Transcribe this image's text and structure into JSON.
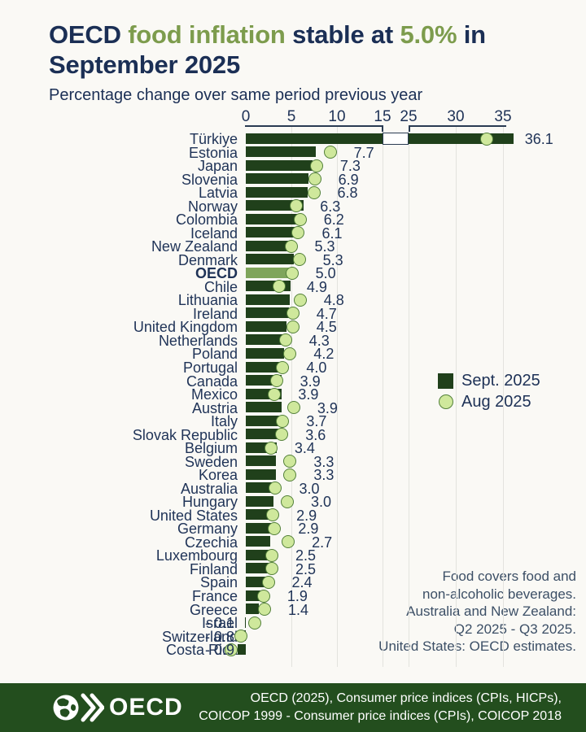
{
  "title": {
    "parts": [
      {
        "text": "OECD ",
        "accent": false
      },
      {
        "text": "food inflation",
        "accent": true
      },
      {
        "text": " stable at ",
        "accent": false
      },
      {
        "text": "5.0%",
        "accent": true
      },
      {
        "text": " in September 2025",
        "accent": false
      }
    ]
  },
  "subtitle": "Percentage change over same period previous year",
  "legend": {
    "sept_label": "Sept. 2025",
    "aug_label": "Aug 2025"
  },
  "footnote_lines": [
    "Food covers food and",
    "non-alcoholic beverages.",
    "Australia and New Zealand:",
    "Q2 2025 - Q3 2025.",
    "United States: OECD estimates."
  ],
  "footer": {
    "logo_text": "OECD",
    "source_lines": [
      "OECD (2025), Consumer price indices (CPIs, HICPs),",
      "COICOP 1999 - Consumer price indices (CPIs), COICOP 2018"
    ]
  },
  "chart_data": {
    "type": "bar",
    "orientation": "horizontal",
    "series": [
      {
        "name": "Sept. 2025",
        "style": "bar"
      },
      {
        "name": "Aug 2025",
        "style": "point"
      }
    ],
    "axis": {
      "left_ticks": [
        0,
        5,
        10,
        15
      ],
      "right_ticks": [
        25,
        30,
        35
      ],
      "break_between": [
        15,
        25
      ],
      "grid": true
    },
    "countries": [
      {
        "label": "Türkiye",
        "sept": 36.1,
        "aug": 33.3,
        "display": "36.1",
        "break_bar": true
      },
      {
        "label": "Estonia",
        "sept": 7.7,
        "aug": 9.3,
        "display": "7.7"
      },
      {
        "label": "Japan",
        "sept": 7.3,
        "aug": 7.8,
        "display": "7.3"
      },
      {
        "label": "Slovenia",
        "sept": 6.9,
        "aug": 7.6,
        "display": "6.9"
      },
      {
        "label": "Latvia",
        "sept": 6.8,
        "aug": 7.5,
        "display": "6.8"
      },
      {
        "label": "Norway",
        "sept": 6.3,
        "aug": 5.6,
        "display": "6.3"
      },
      {
        "label": "Colombia",
        "sept": 6.2,
        "aug": 6.0,
        "display": "6.2"
      },
      {
        "label": "Iceland",
        "sept": 6.1,
        "aug": 5.8,
        "display": "6.1"
      },
      {
        "label": "New Zealand",
        "sept": 5.3,
        "aug": 5.0,
        "display": "5.3"
      },
      {
        "label": "Denmark",
        "sept": 5.3,
        "aug": 5.9,
        "display": "5.3"
      },
      {
        "label": "OECD",
        "sept": 5.0,
        "aug": 5.1,
        "display": "5.0",
        "highlight": true
      },
      {
        "label": "Chile",
        "sept": 4.9,
        "aug": 3.7,
        "display": "4.9"
      },
      {
        "label": "Lithuania",
        "sept": 4.8,
        "aug": 6.0,
        "display": "4.8"
      },
      {
        "label": "Ireland",
        "sept": 4.7,
        "aug": 5.2,
        "display": "4.7"
      },
      {
        "label": "United Kingdom",
        "sept": 4.5,
        "aug": 5.2,
        "display": "4.5"
      },
      {
        "label": "Netherlands",
        "sept": 4.3,
        "aug": 4.4,
        "display": "4.3"
      },
      {
        "label": "Poland",
        "sept": 4.2,
        "aug": 4.9,
        "display": "4.2"
      },
      {
        "label": "Portugal",
        "sept": 4.0,
        "aug": 4.1,
        "display": "4.0"
      },
      {
        "label": "Canada",
        "sept": 3.9,
        "aug": 3.4,
        "display": "3.9"
      },
      {
        "label": "Mexico",
        "sept": 3.9,
        "aug": 3.2,
        "display": "3.9"
      },
      {
        "label": "Austria",
        "sept": 3.9,
        "aug": 5.3,
        "display": "3.9"
      },
      {
        "label": "Italy",
        "sept": 3.7,
        "aug": 4.1,
        "display": "3.7"
      },
      {
        "label": "Slovak Republic",
        "sept": 3.6,
        "aug": 4.0,
        "display": "3.6"
      },
      {
        "label": "Belgium",
        "sept": 3.4,
        "aug": 2.8,
        "display": "3.4"
      },
      {
        "label": "Sweden",
        "sept": 3.3,
        "aug": 4.9,
        "display": "3.3"
      },
      {
        "label": "Korea",
        "sept": 3.3,
        "aug": 4.9,
        "display": "3.3"
      },
      {
        "label": "Australia",
        "sept": 3.0,
        "aug": 3.3,
        "display": "3.0"
      },
      {
        "label": "Hungary",
        "sept": 3.0,
        "aug": 4.6,
        "display": "3.0"
      },
      {
        "label": "United States",
        "sept": 2.9,
        "aug": 3.0,
        "display": "2.9"
      },
      {
        "label": "Germany",
        "sept": 2.9,
        "aug": 3.2,
        "display": "2.9"
      },
      {
        "label": "Czechia",
        "sept": 2.7,
        "aug": 4.7,
        "display": "2.7"
      },
      {
        "label": "Luxembourg",
        "sept": 2.5,
        "aug": 2.9,
        "display": "2.5"
      },
      {
        "label": "Finland",
        "sept": 2.5,
        "aug": 2.9,
        "display": "2.5"
      },
      {
        "label": "Spain",
        "sept": 2.4,
        "aug": 2.5,
        "display": "2.4"
      },
      {
        "label": "France",
        "sept": 1.9,
        "aug": 2.0,
        "display": "1.9"
      },
      {
        "label": "Greece",
        "sept": 1.4,
        "aug": 2.1,
        "display": "1.4"
      },
      {
        "label": "Israel",
        "sept": -0.1,
        "aug": 1.0,
        "display": "- 0.1"
      },
      {
        "label": "Switzerland",
        "sept": -0.8,
        "aug": -0.5,
        "display": "- 0.8"
      },
      {
        "label": "Costa Rica",
        "sept": -0.9,
        "aug": -1.6,
        "display": "- 0.9"
      }
    ]
  },
  "colors": {
    "navy": "#1b2f55",
    "accent_green": "#7d9c4d",
    "bar_dark": "#20401b",
    "bar_oecd": "#7fa55b",
    "dot_fill": "#cfe89c",
    "dot_border": "#53803a",
    "grid": "#e3e3de",
    "footer_bg": "#234e1e",
    "background": "#faf9f5"
  }
}
